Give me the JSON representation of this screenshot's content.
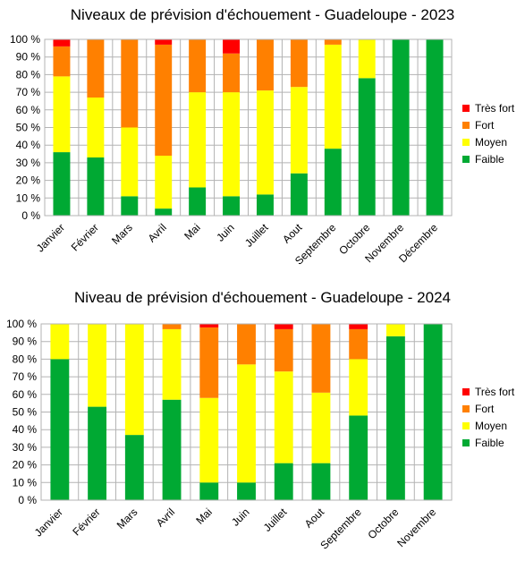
{
  "chart_data": [
    {
      "type": "bar",
      "stacked": true,
      "title": "Niveaux de prévision d'échouement - Guadeloupe - 2023",
      "xlabel": "",
      "ylabel": "",
      "ylim": [
        0,
        100
      ],
      "yticks": [
        "0 %",
        "10 %",
        "20 %",
        "30 %",
        "40 %",
        "50 %",
        "60 %",
        "70 %",
        "80 %",
        "90 %",
        "100 %"
      ],
      "grid": true,
      "legend_position": "right",
      "categories": [
        "Janvier",
        "Février",
        "Mars",
        "Avril",
        "Mai",
        "Juin",
        "Juillet",
        "Aout",
        "Septembre",
        "Octobre",
        "Novembre",
        "Décembre"
      ],
      "series": [
        {
          "name": "Faible",
          "color": "#00a933",
          "values": [
            36,
            33,
            11,
            4,
            16,
            11,
            12,
            24,
            38,
            78,
            100,
            100
          ]
        },
        {
          "name": "Moyen",
          "color": "#ffff00",
          "values": [
            43,
            34,
            39,
            30,
            54,
            59,
            59,
            49,
            59,
            22,
            0,
            0
          ]
        },
        {
          "name": "Fort",
          "color": "#ff8000",
          "values": [
            17,
            33,
            50,
            63,
            30,
            22,
            29,
            27,
            3,
            0,
            0,
            0
          ]
        },
        {
          "name": "Très fort",
          "color": "#ff0000",
          "values": [
            4,
            0,
            0,
            3,
            0,
            8,
            0,
            0,
            0,
            0,
            0,
            0
          ]
        }
      ]
    },
    {
      "type": "bar",
      "stacked": true,
      "title": "Niveau de prévision d'échouement - Guadeloupe - 2024",
      "xlabel": "",
      "ylabel": "",
      "ylim": [
        0,
        100
      ],
      "yticks": [
        "0 %",
        "10 %",
        "20 %",
        "30 %",
        "40 %",
        "50 %",
        "60 %",
        "70 %",
        "80 %",
        "90 %",
        "100 %"
      ],
      "grid": true,
      "legend_position": "right",
      "categories": [
        "Janvier",
        "Février",
        "Mars",
        "Avril",
        "Mai",
        "Juin",
        "Juillet",
        "Aout",
        "Septembre",
        "Octobre",
        "Novembre"
      ],
      "series": [
        {
          "name": "Faible",
          "color": "#00a933",
          "values": [
            80,
            53,
            37,
            57,
            10,
            10,
            21,
            21,
            48,
            93,
            100
          ]
        },
        {
          "name": "Moyen",
          "color": "#ffff00",
          "values": [
            20,
            47,
            63,
            40,
            48,
            67,
            52,
            40,
            32,
            7,
            0
          ]
        },
        {
          "name": "Fort",
          "color": "#ff8000",
          "values": [
            0,
            0,
            0,
            3,
            40,
            23,
            24,
            39,
            17,
            0,
            0
          ]
        },
        {
          "name": "Très fort",
          "color": "#ff0000",
          "values": [
            0,
            0,
            0,
            0,
            2,
            0,
            3,
            0,
            3,
            0,
            0
          ]
        }
      ]
    }
  ]
}
